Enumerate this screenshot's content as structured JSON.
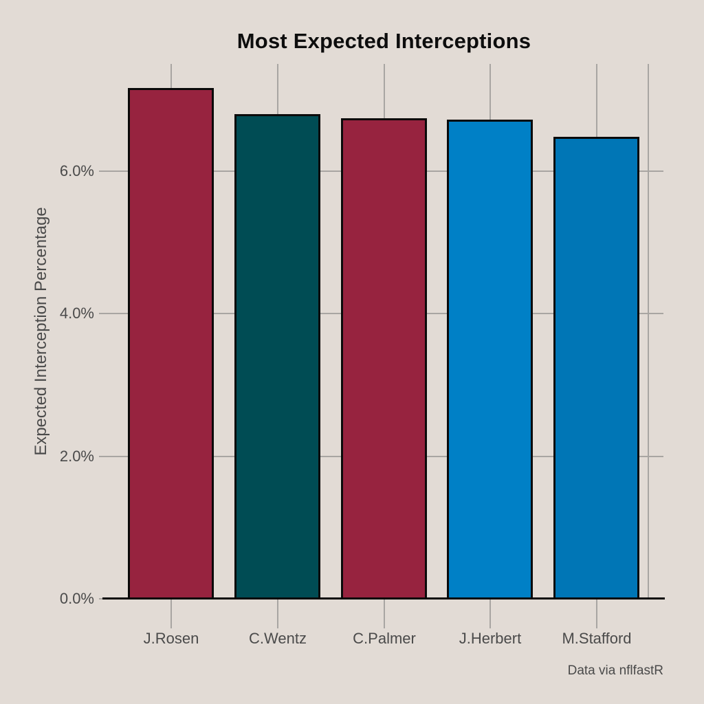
{
  "chart_data": {
    "type": "bar",
    "title": "Most Expected Interceptions",
    "xlabel": "",
    "ylabel": "Expected Interception Percentage",
    "caption": "Data via nflfastR",
    "categories": [
      "J.Rosen",
      "C.Wentz",
      "C.Palmer",
      "J.Herbert",
      "M.Stafford"
    ],
    "values": [
      7.16,
      6.8,
      6.74,
      6.72,
      6.48
    ],
    "unit": "percent",
    "ylim": [
      0,
      7.5
    ],
    "y_tick_values": [
      0,
      2,
      4,
      6
    ],
    "y_tick_labels": [
      "0.0%",
      "2.0%",
      "4.0%",
      "6.0%"
    ],
    "grid": "on",
    "legend": "none",
    "colors": {
      "bars": [
        "#97233F",
        "#004C54",
        "#97233F",
        "#0080C6",
        "#0076B6"
      ],
      "background": "#E2DBD5",
      "grid": "#A8A5A2",
      "axis_line": "#0A0A0A",
      "bar_border": "#0A0A0A",
      "tick_text": "#4A4A4A",
      "title_text": "#0D0D0D"
    }
  }
}
